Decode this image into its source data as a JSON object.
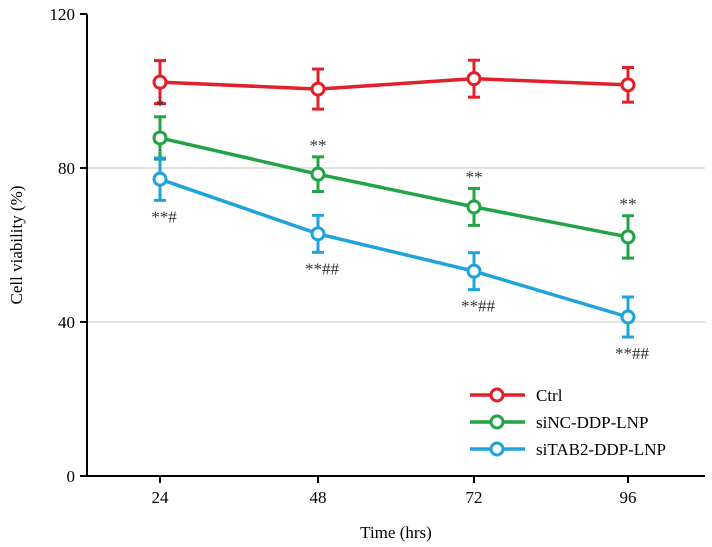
{
  "chart_data": {
    "type": "line",
    "xlabel": "Time (hrs)",
    "ylabel": "Cell viability (%)",
    "x": [
      24,
      48,
      72,
      96
    ],
    "x_tick_labels": [
      "24",
      "48",
      "72",
      "96"
    ],
    "ylim": [
      0,
      120
    ],
    "y_ticks": [
      0,
      40,
      80,
      120
    ],
    "y_tick_labels": [
      "0",
      "40",
      "80",
      "120"
    ],
    "grid": "horizontal at 40 and 80",
    "legend_position": "bottom-right",
    "series": [
      {
        "name": "Ctrl",
        "color": "#e0202a",
        "values": [
          102.3,
          100.5,
          103.2,
          101.6
        ],
        "errors": [
          5.6,
          5.2,
          4.8,
          4.5
        ],
        "annotations": [
          "",
          "",
          "",
          ""
        ]
      },
      {
        "name": "siNC-DDP-LNP",
        "color": "#22a346",
        "values": [
          87.8,
          78.4,
          69.9,
          62.1
        ],
        "errors": [
          5.5,
          4.5,
          4.8,
          5.5
        ],
        "annotations": [
          "*",
          "**",
          "**",
          "**"
        ]
      },
      {
        "name": "siTAB2-DDP-LNP",
        "color": "#1fa3dc",
        "values": [
          77.1,
          62.9,
          53.2,
          41.3
        ],
        "errors": [
          5.5,
          4.8,
          4.8,
          5.2
        ],
        "annotations": [
          "**#",
          "**##",
          "**##",
          "**##"
        ]
      }
    ]
  }
}
